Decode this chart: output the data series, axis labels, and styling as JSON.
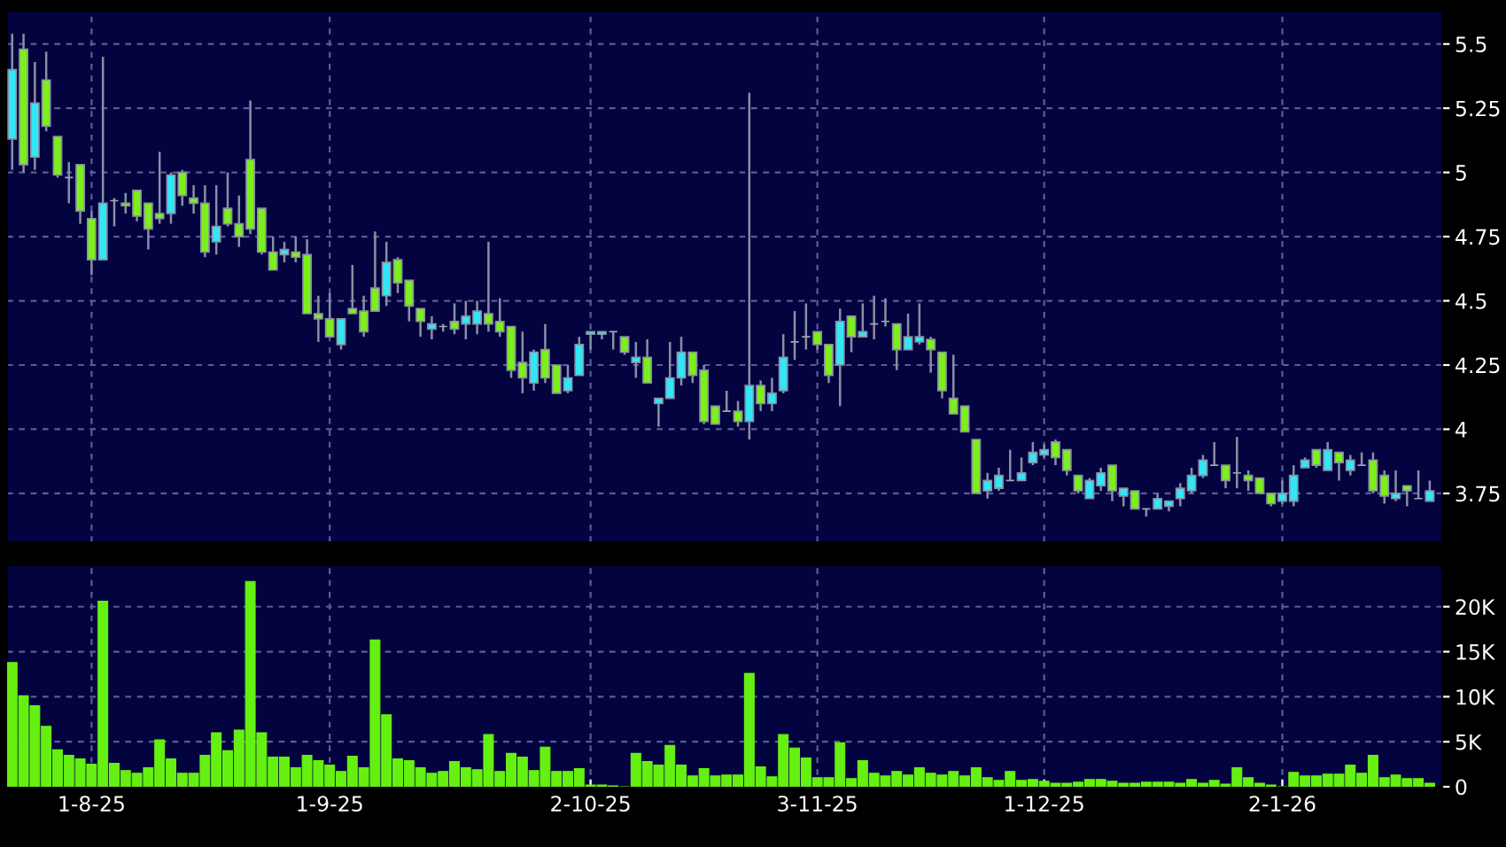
{
  "chart_data": [
    {
      "type": "candlestick",
      "grid": true,
      "tick_labels": "y",
      "categories": [
        null,
        null,
        null,
        null,
        null,
        null,
        null,
        null,
        null,
        null,
        null,
        null,
        null,
        null,
        null,
        null,
        null,
        null,
        null,
        null,
        null,
        null,
        null,
        null,
        null,
        null,
        null,
        null,
        null,
        null,
        null,
        null,
        null,
        null,
        null,
        null,
        null,
        null,
        null,
        null,
        null,
        null,
        null,
        null,
        null,
        null,
        null,
        null,
        null,
        null,
        null,
        null,
        null,
        null,
        null,
        null,
        null,
        null,
        null,
        null,
        null,
        null,
        null,
        null,
        null,
        null,
        null,
        null,
        null,
        null,
        null,
        null,
        null,
        null,
        null,
        null,
        null,
        null,
        null,
        null,
        null,
        null,
        null,
        null,
        null,
        null,
        null,
        null,
        null,
        null,
        null,
        null,
        null,
        null,
        null,
        null,
        null,
        null,
        null,
        null,
        null,
        null,
        null,
        null,
        null,
        null,
        null,
        null,
        null,
        null,
        null,
        null,
        null,
        null,
        null,
        null,
        null,
        null,
        null,
        null,
        null,
        null,
        null,
        null,
        null,
        null
      ],
      "ylim": [
        3.56,
        5.63
      ],
      "yticks": [
        3.75,
        4,
        4.25,
        4.5,
        4.75,
        5,
        5.25,
        5.5
      ],
      "ohlc": [
        [
          5.13,
          5.54,
          5.01,
          5.4
        ],
        [
          5.48,
          5.54,
          5.0,
          5.03
        ],
        [
          5.06,
          5.43,
          5.01,
          5.27
        ],
        [
          5.36,
          5.47,
          5.16,
          5.18
        ],
        [
          5.14,
          5.14,
          4.98,
          4.99
        ],
        [
          4.98,
          5.04,
          4.88,
          4.98
        ],
        [
          5.03,
          5.03,
          4.8,
          4.85
        ],
        [
          4.82,
          4.85,
          4.6,
          4.66
        ],
        [
          4.66,
          5.45,
          4.66,
          4.88
        ],
        [
          4.89,
          4.9,
          4.79,
          4.89
        ],
        [
          4.88,
          4.92,
          4.84,
          4.87
        ],
        [
          4.93,
          4.93,
          4.81,
          4.83
        ],
        [
          4.88,
          4.88,
          4.7,
          4.78
        ],
        [
          4.84,
          5.08,
          4.8,
          4.82
        ],
        [
          4.84,
          5.0,
          4.8,
          4.99
        ],
        [
          5.0,
          5.01,
          4.87,
          4.91
        ],
        [
          4.9,
          4.95,
          4.84,
          4.88
        ],
        [
          4.88,
          4.95,
          4.67,
          4.69
        ],
        [
          4.73,
          4.95,
          4.68,
          4.79
        ],
        [
          4.86,
          5.0,
          4.79,
          4.8
        ],
        [
          4.8,
          4.91,
          4.71,
          4.75
        ],
        [
          5.05,
          5.28,
          4.76,
          4.78
        ],
        [
          4.86,
          4.86,
          4.68,
          4.69
        ],
        [
          4.69,
          4.75,
          4.62,
          4.62
        ],
        [
          4.68,
          4.73,
          4.65,
          4.7
        ],
        [
          4.69,
          4.75,
          4.65,
          4.67
        ],
        [
          4.68,
          4.74,
          4.45,
          4.45
        ],
        [
          4.45,
          4.52,
          4.34,
          4.43
        ],
        [
          4.43,
          4.53,
          4.36,
          4.36
        ],
        [
          4.33,
          4.43,
          4.31,
          4.43
        ],
        [
          4.47,
          4.64,
          4.45,
          4.45
        ],
        [
          4.46,
          4.52,
          4.36,
          4.38
        ],
        [
          4.55,
          4.77,
          4.46,
          4.46
        ],
        [
          4.52,
          4.73,
          4.48,
          4.65
        ],
        [
          4.66,
          4.67,
          4.53,
          4.57
        ],
        [
          4.58,
          4.58,
          4.42,
          4.48
        ],
        [
          4.47,
          4.47,
          4.36,
          4.42
        ],
        [
          4.39,
          4.44,
          4.35,
          4.41
        ],
        [
          4.4,
          4.41,
          4.38,
          4.4
        ],
        [
          4.42,
          4.49,
          4.37,
          4.39
        ],
        [
          4.41,
          4.5,
          4.35,
          4.44
        ],
        [
          4.41,
          4.5,
          4.37,
          4.46
        ],
        [
          4.45,
          4.73,
          4.38,
          4.41
        ],
        [
          4.42,
          4.51,
          4.36,
          4.38
        ],
        [
          4.4,
          4.4,
          4.2,
          4.23
        ],
        [
          4.26,
          4.38,
          4.14,
          4.2
        ],
        [
          4.18,
          4.31,
          4.15,
          4.3
        ],
        [
          4.31,
          4.41,
          4.18,
          4.2
        ],
        [
          4.25,
          4.25,
          4.14,
          4.14
        ],
        [
          4.15,
          4.25,
          4.14,
          4.2
        ],
        [
          4.21,
          4.36,
          4.21,
          4.33
        ],
        [
          4.37,
          4.38,
          4.31,
          4.38
        ],
        [
          4.37,
          4.38,
          4.35,
          4.38
        ],
        [
          4.38,
          4.38,
          4.31,
          4.38
        ],
        [
          4.36,
          4.36,
          4.29,
          4.3
        ],
        [
          4.26,
          4.34,
          4.2,
          4.28
        ],
        [
          4.28,
          4.35,
          4.18,
          4.18
        ],
        [
          4.1,
          4.12,
          4.01,
          4.12
        ],
        [
          4.12,
          4.34,
          4.12,
          4.2
        ],
        [
          4.2,
          4.36,
          4.17,
          4.3
        ],
        [
          4.3,
          4.3,
          4.18,
          4.21
        ],
        [
          4.23,
          4.25,
          4.02,
          4.03
        ],
        [
          4.09,
          4.09,
          4.02,
          4.02
        ],
        [
          4.07,
          4.15,
          4.07,
          4.07
        ],
        [
          4.07,
          4.11,
          4.01,
          4.03
        ],
        [
          4.03,
          5.31,
          3.96,
          4.17
        ],
        [
          4.17,
          4.19,
          4.07,
          4.1
        ],
        [
          4.1,
          4.2,
          4.07,
          4.14
        ],
        [
          4.15,
          4.37,
          4.14,
          4.28
        ],
        [
          4.34,
          4.46,
          4.27,
          4.34
        ],
        [
          4.36,
          4.49,
          4.31,
          4.36
        ],
        [
          4.38,
          4.38,
          4.31,
          4.33
        ],
        [
          4.33,
          4.33,
          4.18,
          4.21
        ],
        [
          4.25,
          4.47,
          4.09,
          4.42
        ],
        [
          4.44,
          4.44,
          4.3,
          4.36
        ],
        [
          4.36,
          4.49,
          4.36,
          4.38
        ],
        [
          4.41,
          4.52,
          4.35,
          4.41
        ],
        [
          4.42,
          4.51,
          4.4,
          4.42
        ],
        [
          4.41,
          4.41,
          4.23,
          4.31
        ],
        [
          4.31,
          4.45,
          4.31,
          4.36
        ],
        [
          4.34,
          4.49,
          4.33,
          4.36
        ],
        [
          4.35,
          4.36,
          4.22,
          4.31
        ],
        [
          4.3,
          4.3,
          4.12,
          4.15
        ],
        [
          4.12,
          4.29,
          4.06,
          4.06
        ],
        [
          4.09,
          4.09,
          3.99,
          3.99
        ],
        [
          3.96,
          3.96,
          3.75,
          3.75
        ],
        [
          3.76,
          3.83,
          3.73,
          3.8
        ],
        [
          3.77,
          3.85,
          3.76,
          3.82
        ],
        [
          3.8,
          3.92,
          3.8,
          3.8
        ],
        [
          3.8,
          3.89,
          3.8,
          3.83
        ],
        [
          3.87,
          3.95,
          3.86,
          3.91
        ],
        [
          3.9,
          3.94,
          3.89,
          3.92
        ],
        [
          3.95,
          3.96,
          3.86,
          3.89
        ],
        [
          3.92,
          3.92,
          3.82,
          3.84
        ],
        [
          3.82,
          3.82,
          3.75,
          3.76
        ],
        [
          3.73,
          3.81,
          3.73,
          3.8
        ],
        [
          3.78,
          3.85,
          3.76,
          3.83
        ],
        [
          3.86,
          3.86,
          3.72,
          3.76
        ],
        [
          3.74,
          3.77,
          3.7,
          3.77
        ],
        [
          3.76,
          3.76,
          3.69,
          3.69
        ],
        [
          3.69,
          3.69,
          3.66,
          3.69
        ],
        [
          3.69,
          3.75,
          3.69,
          3.73
        ],
        [
          3.7,
          3.72,
          3.68,
          3.72
        ],
        [
          3.73,
          3.79,
          3.7,
          3.77
        ],
        [
          3.76,
          3.85,
          3.75,
          3.82
        ],
        [
          3.82,
          3.9,
          3.81,
          3.88
        ],
        [
          3.86,
          3.95,
          3.86,
          3.86
        ],
        [
          3.86,
          3.86,
          3.77,
          3.8
        ],
        [
          3.83,
          3.97,
          3.77,
          3.83
        ],
        [
          3.82,
          3.84,
          3.76,
          3.8
        ],
        [
          3.81,
          3.81,
          3.75,
          3.75
        ],
        [
          3.75,
          3.75,
          3.7,
          3.71
        ],
        [
          3.72,
          3.8,
          3.71,
          3.75
        ],
        [
          3.72,
          3.86,
          3.7,
          3.82
        ],
        [
          3.85,
          3.89,
          3.85,
          3.88
        ],
        [
          3.92,
          3.92,
          3.85,
          3.86
        ],
        [
          3.84,
          3.95,
          3.84,
          3.92
        ],
        [
          3.91,
          3.91,
          3.8,
          3.87
        ],
        [
          3.84,
          3.9,
          3.82,
          3.88
        ],
        [
          3.86,
          3.91,
          3.86,
          3.86
        ],
        [
          3.88,
          3.91,
          3.75,
          3.76
        ],
        [
          3.82,
          3.84,
          3.71,
          3.74
        ],
        [
          3.73,
          3.84,
          3.72,
          3.75
        ],
        [
          3.78,
          3.78,
          3.7,
          3.76
        ],
        [
          3.73,
          3.84,
          3.73,
          3.73
        ],
        [
          3.72,
          3.8,
          3.72,
          3.76
        ]
      ],
      "colors": [
        "#33e6f5",
        "#7cf01a",
        "#33e6f5",
        "#7cf01a",
        "#7cf01a",
        "#a0a4b8",
        "#7cf01a",
        "#7cf01a",
        "#33e6f5",
        "#a0a4b8",
        "#7cf01a",
        "#7cf01a",
        "#7cf01a",
        "#7cf01a",
        "#33e6f5",
        "#7cf01a",
        "#7cf01a",
        "#7cf01a",
        "#33e6f5",
        "#7cf01a",
        "#7cf01a",
        "#7cf01a",
        "#7cf01a",
        "#7cf01a",
        "#33e6f5",
        "#7cf01a",
        "#7cf01a",
        "#7cf01a",
        "#7cf01a",
        "#33e6f5",
        "#7cf01a",
        "#7cf01a",
        "#7cf01a",
        "#33e6f5",
        "#7cf01a",
        "#7cf01a",
        "#7cf01a",
        "#33e6f5",
        "#a0a4b8",
        "#7cf01a",
        "#33e6f5",
        "#33e6f5",
        "#7cf01a",
        "#7cf01a",
        "#7cf01a",
        "#7cf01a",
        "#33e6f5",
        "#7cf01a",
        "#7cf01a",
        "#33e6f5",
        "#33e6f5",
        "#33e6f5",
        "#33e6f5",
        "#a0a4b8",
        "#7cf01a",
        "#33e6f5",
        "#7cf01a",
        "#33e6f5",
        "#33e6f5",
        "#33e6f5",
        "#7cf01a",
        "#7cf01a",
        "#7cf01a",
        "#a0a4b8",
        "#7cf01a",
        "#33e6f5",
        "#7cf01a",
        "#33e6f5",
        "#33e6f5",
        "#a0a4b8",
        "#a0a4b8",
        "#7cf01a",
        "#7cf01a",
        "#33e6f5",
        "#7cf01a",
        "#33e6f5",
        "#a0a4b8",
        "#a0a4b8",
        "#7cf01a",
        "#33e6f5",
        "#33e6f5",
        "#7cf01a",
        "#7cf01a",
        "#7cf01a",
        "#7cf01a",
        "#7cf01a",
        "#33e6f5",
        "#33e6f5",
        "#a0a4b8",
        "#33e6f5",
        "#33e6f5",
        "#33e6f5",
        "#7cf01a",
        "#7cf01a",
        "#7cf01a",
        "#33e6f5",
        "#33e6f5",
        "#7cf01a",
        "#33e6f5",
        "#7cf01a",
        "#a0a4b8",
        "#33e6f5",
        "#33e6f5",
        "#33e6f5",
        "#33e6f5",
        "#33e6f5",
        "#a0a4b8",
        "#7cf01a",
        "#a0a4b8",
        "#7cf01a",
        "#7cf01a",
        "#7cf01a",
        "#33e6f5",
        "#33e6f5",
        "#33e6f5",
        "#7cf01a",
        "#33e6f5",
        "#7cf01a",
        "#33e6f5",
        "#a0a4b8",
        "#7cf01a",
        "#7cf01a",
        "#33e6f5",
        "#7cf01a",
        "#a0a4b8",
        "#33e6f5"
      ]
    },
    {
      "type": "bar",
      "grid": true,
      "color": "#66f011",
      "categories": [
        null,
        null,
        null,
        null,
        null,
        null,
        null,
        "1-8-25",
        null,
        null,
        null,
        null,
        null,
        null,
        null,
        null,
        null,
        null,
        null,
        null,
        null,
        null,
        null,
        null,
        null,
        null,
        null,
        null,
        "1-9-25",
        null,
        null,
        null,
        null,
        null,
        null,
        null,
        null,
        null,
        null,
        null,
        null,
        null,
        null,
        null,
        null,
        null,
        null,
        null,
        null,
        null,
        null,
        "2-10-25",
        null,
        null,
        null,
        null,
        null,
        null,
        null,
        null,
        null,
        null,
        null,
        null,
        null,
        null,
        null,
        null,
        null,
        null,
        null,
        "3-11-25",
        null,
        null,
        null,
        null,
        null,
        null,
        null,
        null,
        null,
        null,
        null,
        null,
        null,
        null,
        null,
        null,
        null,
        null,
        null,
        "1-12-25",
        null,
        null,
        null,
        null,
        null,
        null,
        null,
        null,
        null,
        null,
        null,
        null,
        null,
        null,
        null,
        null,
        null,
        null,
        null,
        null,
        "2-1-26",
        null,
        null,
        null,
        null,
        null,
        null,
        null,
        null,
        null,
        null,
        null,
        null,
        null
      ],
      "ylim": [
        0,
        24.6
      ],
      "yticks": [
        0,
        {
          "value": 5,
          "label": "5K"
        },
        {
          "value": 10,
          "label": "10K"
        },
        {
          "value": 15,
          "label": "15K"
        },
        {
          "value": 20,
          "label": "20K"
        }
      ],
      "values": [
        13.8,
        10.1,
        9.0,
        6.7,
        4.1,
        3.5,
        3.1,
        2.5,
        20.6,
        2.6,
        1.8,
        1.5,
        2.1,
        5.2,
        3.1,
        1.5,
        1.5,
        3.5,
        6.0,
        4.0,
        6.3,
        22.8,
        6.0,
        3.3,
        3.3,
        2.1,
        3.5,
        2.9,
        2.4,
        1.7,
        3.4,
        2.1,
        16.3,
        8.0,
        3.1,
        2.9,
        2.1,
        1.5,
        1.7,
        2.8,
        2.1,
        1.9,
        5.8,
        1.7,
        3.7,
        3.3,
        1.8,
        4.4,
        1.7,
        1.7,
        2.0,
        0.2,
        0.2,
        0.1,
        0,
        3.7,
        2.8,
        2.4,
        4.6,
        2.4,
        1.2,
        2.0,
        1.2,
        1.3,
        1.3,
        12.6,
        2.2,
        1.1,
        5.8,
        4.3,
        3.2,
        1.0,
        1.0,
        4.9,
        0.9,
        2.9,
        1.5,
        1.2,
        1.7,
        1.3,
        2.1,
        1.5,
        1.3,
        1.7,
        1.2,
        2.1,
        1.0,
        0.7,
        1.7,
        0.7,
        0.8,
        0.6,
        0.4,
        0.4,
        0.5,
        0.8,
        0.8,
        0.6,
        0.4,
        0.4,
        0.5,
        0.5,
        0.5,
        0.4,
        0.8,
        0.4,
        0.7,
        0.3,
        2.1,
        1.0,
        0.4,
        0.2,
        0,
        1.6,
        1.2,
        1.2,
        1.4,
        1.4,
        2.4,
        1.5,
        3.5,
        1.0,
        1.3,
        0.9,
        0.9,
        0.4
      ]
    }
  ]
}
